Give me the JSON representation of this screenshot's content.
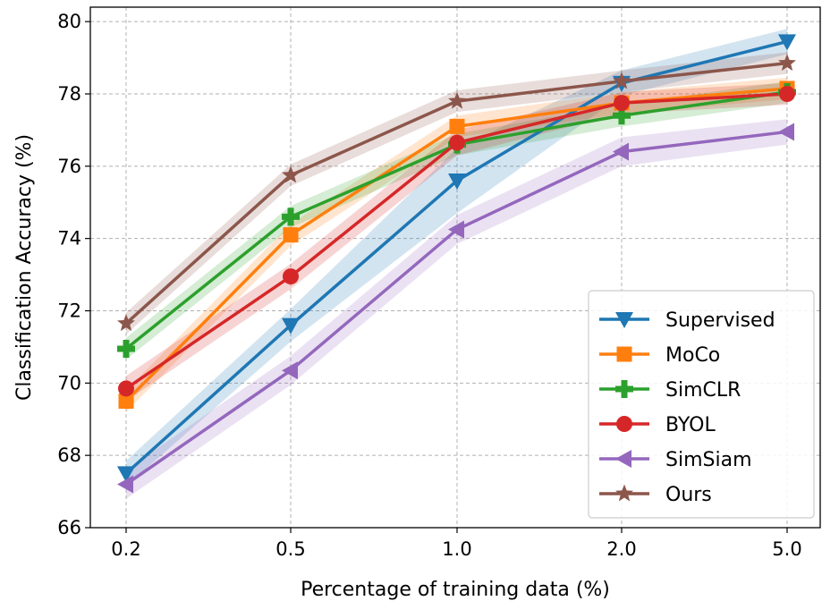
{
  "chart_data": {
    "type": "line",
    "title": "",
    "xlabel": "Percentage of training data (%)",
    "ylabel": "Classification Accuracy (%)",
    "categories": [
      "0.2",
      "0.5",
      "1.0",
      "2.0",
      "5.0"
    ],
    "ylim": [
      66,
      80.4
    ],
    "yticks": [
      "66",
      "68",
      "70",
      "72",
      "74",
      "76",
      "78",
      "80"
    ],
    "grid": true,
    "grid_style": "dashed",
    "legend_position": "lower-right",
    "series": [
      {
        "name": "Supervised",
        "color": "#1f77b4",
        "marker": "triangle-down",
        "values": [
          67.5,
          71.6,
          75.6,
          78.3,
          79.45
        ],
        "band": [
          0.35,
          0.45,
          0.9,
          0.35,
          0.35
        ]
      },
      {
        "name": "MoCo",
        "color": "#ff7f0e",
        "marker": "square",
        "values": [
          69.5,
          74.1,
          77.1,
          77.75,
          78.15
        ],
        "band": [
          0.3,
          0.3,
          0.3,
          0.3,
          0.3
        ]
      },
      {
        "name": "SimCLR",
        "color": "#2ca02c",
        "marker": "plus",
        "values": [
          70.95,
          74.6,
          76.6,
          77.4,
          78.05
        ],
        "band": [
          0.3,
          0.3,
          0.3,
          0.3,
          0.3
        ]
      },
      {
        "name": "BYOL",
        "color": "#d62728",
        "marker": "circle",
        "values": [
          69.85,
          72.95,
          76.65,
          77.75,
          78.0
        ],
        "band": [
          0.35,
          0.35,
          0.35,
          0.3,
          0.3
        ]
      },
      {
        "name": "SimSiam",
        "color": "#9467bd",
        "marker": "triangle-left",
        "values": [
          67.2,
          70.35,
          74.25,
          76.4,
          76.95
        ],
        "band": [
          0.4,
          0.4,
          0.4,
          0.4,
          0.35
        ]
      },
      {
        "name": "Ours",
        "color": "#8c564b",
        "marker": "star",
        "values": [
          71.65,
          75.75,
          77.8,
          78.35,
          78.85
        ],
        "band": [
          0.3,
          0.3,
          0.3,
          0.3,
          0.3
        ]
      }
    ]
  }
}
